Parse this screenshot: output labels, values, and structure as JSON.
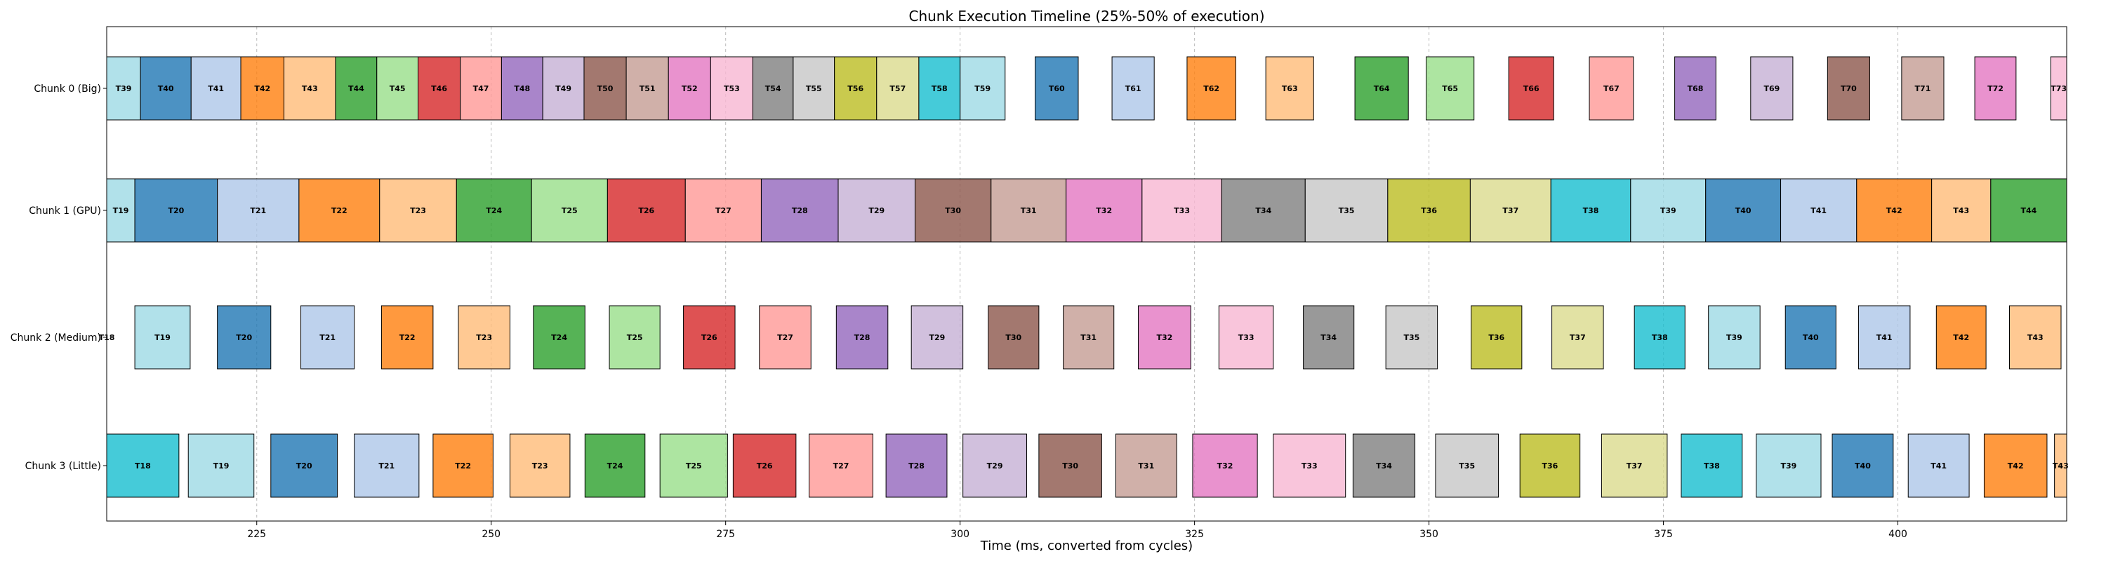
{
  "chart_data": {
    "type": "timeline",
    "title": "Chunk Execution Timeline (25%-50% of execution)",
    "xlabel": "Time (ms, converted from cycles)",
    "xlim": [
      209,
      418
    ],
    "xticks": [
      225,
      250,
      275,
      300,
      325,
      350,
      375,
      400
    ],
    "grid": "vertical-dashed",
    "palette": [
      "#1f77b4",
      "#aec7e8",
      "#ff7f0e",
      "#ffbb78",
      "#2ca02c",
      "#98df8a",
      "#d62728",
      "#ff9896",
      "#9467bd",
      "#c5b0d5",
      "#8c564b",
      "#c49c94",
      "#e377c2",
      "#f7b6d2",
      "#7f7f7f",
      "#c7c7c7",
      "#bcbd22",
      "#dbdb8d",
      "#17becf",
      "#9edae5"
    ],
    "rows": [
      {
        "name": "Chunk 0 (Big)",
        "tasks": [
          {
            "label": "T39",
            "start": 209.0,
            "end": 212.6
          },
          {
            "label": "T40",
            "start": 212.6,
            "end": 218.0
          },
          {
            "label": "T41",
            "start": 218.0,
            "end": 223.3
          },
          {
            "label": "T42",
            "start": 223.3,
            "end": 227.9
          },
          {
            "label": "T43",
            "start": 227.9,
            "end": 233.4
          },
          {
            "label": "T44",
            "start": 233.4,
            "end": 237.8
          },
          {
            "label": "T45",
            "start": 237.8,
            "end": 242.2
          },
          {
            "label": "T46",
            "start": 242.2,
            "end": 246.7
          },
          {
            "label": "T47",
            "start": 246.7,
            "end": 251.1
          },
          {
            "label": "T48",
            "start": 251.1,
            "end": 255.5
          },
          {
            "label": "T49",
            "start": 255.5,
            "end": 259.9
          },
          {
            "label": "T50",
            "start": 259.9,
            "end": 264.4
          },
          {
            "label": "T51",
            "start": 264.4,
            "end": 268.9
          },
          {
            "label": "T52",
            "start": 268.9,
            "end": 273.4
          },
          {
            "label": "T53",
            "start": 273.4,
            "end": 277.9
          },
          {
            "label": "T54",
            "start": 277.9,
            "end": 282.2
          },
          {
            "label": "T55",
            "start": 282.2,
            "end": 286.6
          },
          {
            "label": "T56",
            "start": 286.6,
            "end": 291.1
          },
          {
            "label": "T57",
            "start": 291.1,
            "end": 295.6
          },
          {
            "label": "T58",
            "start": 295.6,
            "end": 300.0
          },
          {
            "label": "T59",
            "start": 300.0,
            "end": 304.8
          },
          {
            "label": "T60",
            "start": 308.0,
            "end": 312.6
          },
          {
            "label": "T61",
            "start": 316.2,
            "end": 320.7
          },
          {
            "label": "T62",
            "start": 324.2,
            "end": 329.4
          },
          {
            "label": "T63",
            "start": 332.6,
            "end": 337.7
          },
          {
            "label": "T64",
            "start": 342.1,
            "end": 347.8
          },
          {
            "label": "T65",
            "start": 349.7,
            "end": 354.8
          },
          {
            "label": "T66",
            "start": 358.5,
            "end": 363.3
          },
          {
            "label": "T67",
            "start": 367.1,
            "end": 371.8
          },
          {
            "label": "T68",
            "start": 376.2,
            "end": 380.6
          },
          {
            "label": "T69",
            "start": 384.3,
            "end": 388.8
          },
          {
            "label": "T70",
            "start": 392.5,
            "end": 397.0
          },
          {
            "label": "T71",
            "start": 400.4,
            "end": 404.9
          },
          {
            "label": "T72",
            "start": 408.2,
            "end": 412.6
          },
          {
            "label": "T73",
            "start": 416.3,
            "end": 418.0
          }
        ]
      },
      {
        "name": "Chunk 1 (GPU)",
        "tasks": [
          {
            "label": "T19",
            "start": 209.0,
            "end": 212.0
          },
          {
            "label": "T20",
            "start": 212.0,
            "end": 220.8
          },
          {
            "label": "T21",
            "start": 220.8,
            "end": 229.5
          },
          {
            "label": "T22",
            "start": 229.5,
            "end": 238.1
          },
          {
            "label": "T23",
            "start": 238.1,
            "end": 246.3
          },
          {
            "label": "T24",
            "start": 246.3,
            "end": 254.3
          },
          {
            "label": "T25",
            "start": 254.3,
            "end": 262.4
          },
          {
            "label": "T26",
            "start": 262.4,
            "end": 270.7
          },
          {
            "label": "T27",
            "start": 270.7,
            "end": 278.8
          },
          {
            "label": "T28",
            "start": 278.8,
            "end": 287.0
          },
          {
            "label": "T29",
            "start": 287.0,
            "end": 295.2
          },
          {
            "label": "T30",
            "start": 295.2,
            "end": 303.3
          },
          {
            "label": "T31",
            "start": 303.3,
            "end": 311.3
          },
          {
            "label": "T32",
            "start": 311.3,
            "end": 319.4
          },
          {
            "label": "T33",
            "start": 319.4,
            "end": 327.9
          },
          {
            "label": "T34",
            "start": 327.9,
            "end": 336.8
          },
          {
            "label": "T35",
            "start": 336.8,
            "end": 345.6
          },
          {
            "label": "T36",
            "start": 345.6,
            "end": 354.4
          },
          {
            "label": "T37",
            "start": 354.4,
            "end": 363.0
          },
          {
            "label": "T38",
            "start": 363.0,
            "end": 371.5
          },
          {
            "label": "T39",
            "start": 371.5,
            "end": 379.5
          },
          {
            "label": "T40",
            "start": 379.5,
            "end": 387.5
          },
          {
            "label": "T41",
            "start": 387.5,
            "end": 395.6
          },
          {
            "label": "T42",
            "start": 395.6,
            "end": 403.6
          },
          {
            "label": "T43",
            "start": 403.6,
            "end": 409.9
          },
          {
            "label": "T44",
            "start": 409.9,
            "end": 418.0
          }
        ]
      },
      {
        "name": "Chunk 2 (Medium)",
        "tasks": [
          {
            "label": "T18",
            "start": 209.0,
            "end": 209.0
          },
          {
            "label": "T19",
            "start": 212.0,
            "end": 217.9
          },
          {
            "label": "T20",
            "start": 220.8,
            "end": 226.5
          },
          {
            "label": "T21",
            "start": 229.7,
            "end": 235.4
          },
          {
            "label": "T22",
            "start": 238.3,
            "end": 243.8
          },
          {
            "label": "T23",
            "start": 246.5,
            "end": 252.0
          },
          {
            "label": "T24",
            "start": 254.5,
            "end": 260.0
          },
          {
            "label": "T25",
            "start": 262.6,
            "end": 268.0
          },
          {
            "label": "T26",
            "start": 270.5,
            "end": 276.0
          },
          {
            "label": "T27",
            "start": 278.6,
            "end": 284.1
          },
          {
            "label": "T28",
            "start": 286.8,
            "end": 292.3
          },
          {
            "label": "T29",
            "start": 294.8,
            "end": 300.3
          },
          {
            "label": "T30",
            "start": 303.0,
            "end": 308.4
          },
          {
            "label": "T31",
            "start": 311.0,
            "end": 316.4
          },
          {
            "label": "T32",
            "start": 319.0,
            "end": 324.6
          },
          {
            "label": "T33",
            "start": 327.6,
            "end": 333.4
          },
          {
            "label": "T34",
            "start": 336.6,
            "end": 342.0
          },
          {
            "label": "T35",
            "start": 345.4,
            "end": 350.9
          },
          {
            "label": "T36",
            "start": 354.5,
            "end": 359.9
          },
          {
            "label": "T37",
            "start": 363.1,
            "end": 368.6
          },
          {
            "label": "T38",
            "start": 371.9,
            "end": 377.3
          },
          {
            "label": "T39",
            "start": 379.8,
            "end": 385.3
          },
          {
            "label": "T40",
            "start": 388.0,
            "end": 393.4
          },
          {
            "label": "T41",
            "start": 395.8,
            "end": 401.3
          },
          {
            "label": "T42",
            "start": 404.1,
            "end": 409.4
          },
          {
            "label": "T43",
            "start": 411.9,
            "end": 417.4
          }
        ]
      },
      {
        "name": "Chunk 3 (Little)",
        "tasks": [
          {
            "label": "T18",
            "start": 209.0,
            "end": 216.7
          },
          {
            "label": "T19",
            "start": 217.7,
            "end": 224.7
          },
          {
            "label": "T20",
            "start": 226.5,
            "end": 233.6
          },
          {
            "label": "T21",
            "start": 235.4,
            "end": 242.3
          },
          {
            "label": "T22",
            "start": 243.8,
            "end": 250.2
          },
          {
            "label": "T23",
            "start": 252.0,
            "end": 258.4
          },
          {
            "label": "T24",
            "start": 260.0,
            "end": 266.4
          },
          {
            "label": "T25",
            "start": 268.0,
            "end": 275.2
          },
          {
            "label": "T26",
            "start": 275.8,
            "end": 282.5
          },
          {
            "label": "T27",
            "start": 283.9,
            "end": 290.7
          },
          {
            "label": "T28",
            "start": 292.1,
            "end": 298.6
          },
          {
            "label": "T29",
            "start": 300.3,
            "end": 307.1
          },
          {
            "label": "T30",
            "start": 308.4,
            "end": 315.1
          },
          {
            "label": "T31",
            "start": 316.6,
            "end": 323.1
          },
          {
            "label": "T32",
            "start": 324.8,
            "end": 331.7
          },
          {
            "label": "T33",
            "start": 333.4,
            "end": 341.1
          },
          {
            "label": "T34",
            "start": 341.9,
            "end": 348.5
          },
          {
            "label": "T35",
            "start": 350.7,
            "end": 357.4
          },
          {
            "label": "T36",
            "start": 359.7,
            "end": 366.1
          },
          {
            "label": "T37",
            "start": 368.4,
            "end": 375.4
          },
          {
            "label": "T38",
            "start": 376.9,
            "end": 383.4
          },
          {
            "label": "T39",
            "start": 384.9,
            "end": 391.8
          },
          {
            "label": "T40",
            "start": 393.0,
            "end": 399.5
          },
          {
            "label": "T41",
            "start": 401.1,
            "end": 407.6
          },
          {
            "label": "T42",
            "start": 409.2,
            "end": 415.9
          },
          {
            "label": "T43",
            "start": 416.7,
            "end": 418.0
          }
        ]
      }
    ]
  }
}
